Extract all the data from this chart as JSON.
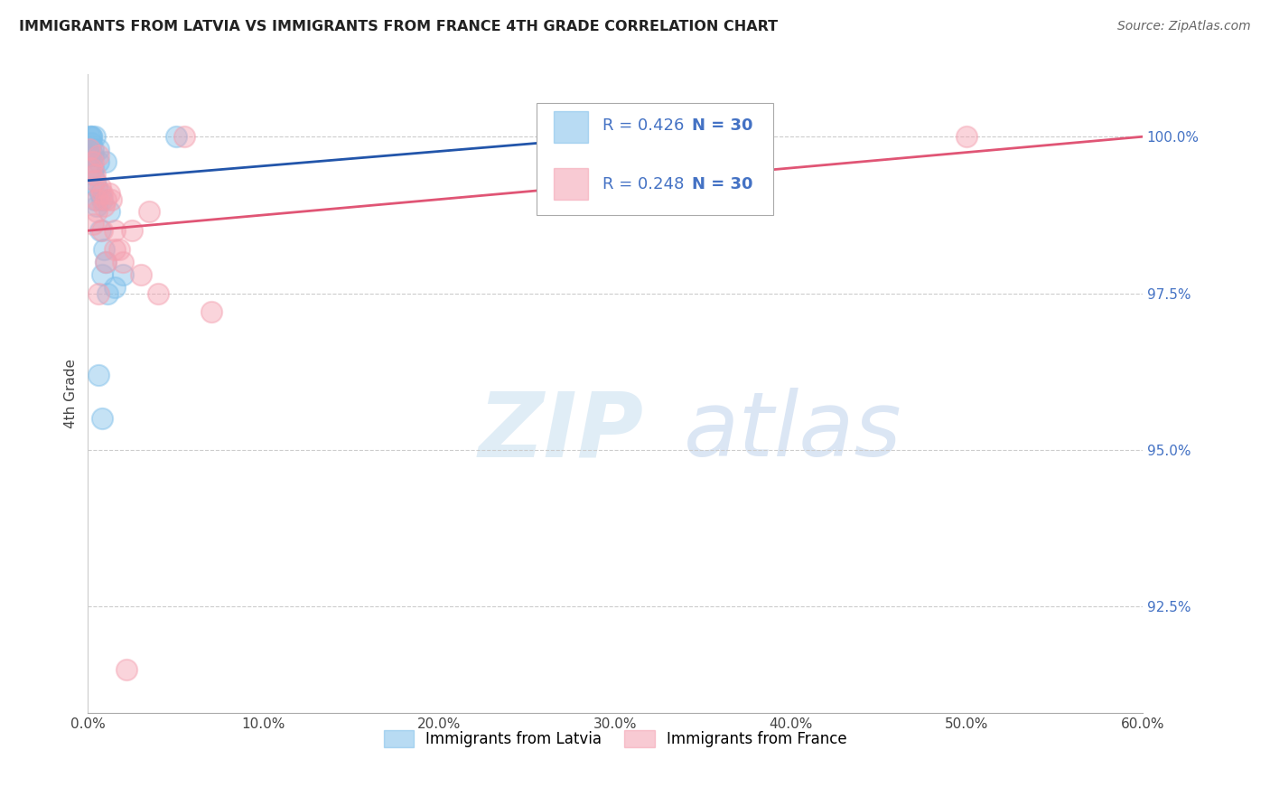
{
  "title": "IMMIGRANTS FROM LATVIA VS IMMIGRANTS FROM FRANCE 4TH GRADE CORRELATION CHART",
  "source": "Source: ZipAtlas.com",
  "xlabel_vals": [
    0.0,
    10.0,
    20.0,
    30.0,
    40.0,
    50.0,
    60.0
  ],
  "ylabel": "4th Grade",
  "ylabel_vals": [
    92.5,
    95.0,
    97.5,
    100.0
  ],
  "xmin": 0.0,
  "xmax": 60.0,
  "ymin": 90.8,
  "ymax": 101.0,
  "legend1_label": "Immigrants from Latvia",
  "legend2_label": "Immigrants from France",
  "r_latvia": 0.426,
  "n_latvia": 30,
  "r_france": 0.248,
  "n_france": 30,
  "color_latvia": "#7fbfea",
  "color_france": "#f4a0b0",
  "color_trend_latvia": "#2255aa",
  "color_trend_france": "#e05575",
  "watermark_zip": "ZIP",
  "watermark_atlas": "atlas",
  "latvia_x": [
    0.1,
    0.2,
    0.2,
    0.3,
    0.3,
    0.3,
    0.3,
    0.4,
    0.4,
    0.5,
    0.5,
    0.6,
    0.6,
    0.7,
    0.7,
    0.8,
    0.8,
    0.9,
    1.0,
    1.0,
    1.1,
    1.2,
    1.5,
    2.0,
    0.1,
    0.2,
    0.4,
    0.8,
    5.0,
    0.6
  ],
  "latvia_y": [
    100.0,
    100.0,
    99.9,
    99.8,
    99.7,
    99.5,
    99.4,
    99.3,
    99.0,
    99.2,
    98.9,
    99.6,
    99.8,
    98.5,
    99.1,
    99.0,
    97.8,
    98.2,
    99.6,
    98.0,
    97.5,
    98.8,
    97.6,
    97.8,
    99.7,
    100.0,
    100.0,
    95.5,
    100.0,
    96.2
  ],
  "france_x": [
    0.1,
    0.2,
    0.3,
    0.4,
    0.4,
    0.5,
    0.5,
    0.6,
    0.7,
    0.8,
    0.8,
    0.9,
    1.0,
    1.0,
    1.2,
    1.3,
    1.5,
    1.5,
    1.8,
    2.0,
    2.2,
    2.5,
    3.5,
    4.0,
    5.5,
    7.0,
    0.3,
    0.6,
    50.0,
    3.0
  ],
  "france_y": [
    99.8,
    99.5,
    99.6,
    99.3,
    99.4,
    99.0,
    98.8,
    99.7,
    99.2,
    99.1,
    98.5,
    98.9,
    99.0,
    98.0,
    99.1,
    99.0,
    98.2,
    98.5,
    98.2,
    98.0,
    91.5,
    98.5,
    98.8,
    97.5,
    100.0,
    97.2,
    98.6,
    97.5,
    100.0,
    97.8
  ],
  "latvia_trend_x": [
    0.0,
    30.0
  ],
  "latvia_trend_y": [
    99.3,
    100.0
  ],
  "france_trend_x": [
    0.0,
    60.0
  ],
  "france_trend_y": [
    98.5,
    100.0
  ]
}
